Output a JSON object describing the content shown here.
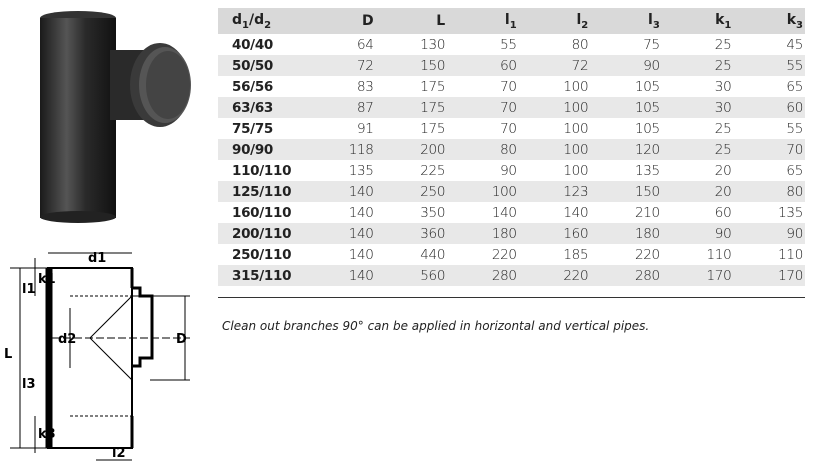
{
  "table": {
    "headers": [
      {
        "base": "d",
        "sub": "1",
        "rest": "/d",
        "sub2": "2"
      },
      {
        "base": "D"
      },
      {
        "base": "L"
      },
      {
        "base": "l",
        "sub": "1"
      },
      {
        "base": "l",
        "sub": "2"
      },
      {
        "base": "l",
        "sub": "3"
      },
      {
        "base": "k",
        "sub": "1"
      },
      {
        "base": "k",
        "sub": "3"
      }
    ],
    "rows": [
      [
        "40/40",
        "64",
        "130",
        "55",
        "80",
        "75",
        "25",
        "45"
      ],
      [
        "50/50",
        "72",
        "150",
        "60",
        "72",
        "90",
        "25",
        "55"
      ],
      [
        "56/56",
        "83",
        "175",
        "70",
        "100",
        "105",
        "30",
        "65"
      ],
      [
        "63/63",
        "87",
        "175",
        "70",
        "100",
        "105",
        "30",
        "60"
      ],
      [
        "75/75",
        "91",
        "175",
        "70",
        "100",
        "105",
        "25",
        "55"
      ],
      [
        "90/90",
        "118",
        "200",
        "80",
        "100",
        "120",
        "25",
        "70"
      ],
      [
        "110/110",
        "135",
        "225",
        "90",
        "100",
        "135",
        "20",
        "65"
      ],
      [
        "125/110",
        "140",
        "250",
        "100",
        "123",
        "150",
        "20",
        "80"
      ],
      [
        "160/110",
        "140",
        "350",
        "140",
        "140",
        "210",
        "60",
        "135"
      ],
      [
        "200/110",
        "140",
        "360",
        "180",
        "160",
        "180",
        "90",
        "90"
      ],
      [
        "250/110",
        "140",
        "440",
        "220",
        "185",
        "220",
        "110",
        "110"
      ],
      [
        "315/110",
        "140",
        "560",
        "280",
        "220",
        "280",
        "170",
        "170"
      ]
    ]
  },
  "caption": "Clean out branches 90° can be applied in horizontal and vertical pipes.",
  "drawing_labels": {
    "d1": "d1",
    "d2": "d2",
    "D": "D",
    "L": "L",
    "l1": "l1",
    "l2": "l2",
    "l3": "l3",
    "k1": "k1",
    "k3": "k3"
  }
}
